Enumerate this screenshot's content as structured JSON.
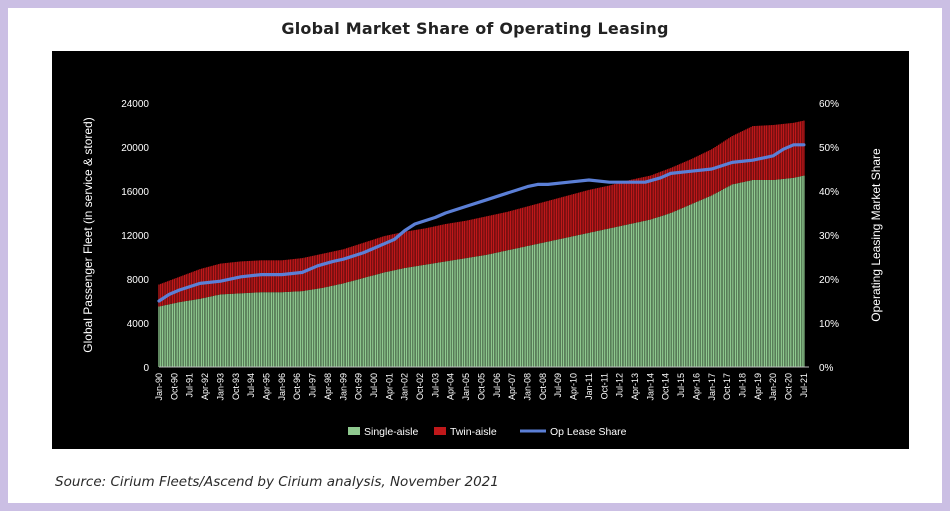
{
  "chart_data": {
    "type": "bar",
    "title": "Global Market Share of Operating Leasing",
    "ylabel": "Global Passenger Fleet (in service & stored)",
    "y2label": "Operating Leasing Market Share",
    "ylim": [
      0,
      24000
    ],
    "y2lim": [
      0,
      0.6
    ],
    "yticks": [
      "0",
      "4000",
      "8000",
      "12000",
      "16000",
      "20000",
      "24000"
    ],
    "y2ticks": [
      "0%",
      "10%",
      "20%",
      "30%",
      "40%",
      "50%",
      "60%"
    ],
    "x_ticks": [
      "Jan-90",
      "Oct-90",
      "Jul-91",
      "Apr-92",
      "Jan-93",
      "Oct-93",
      "Jul-94",
      "Apr-95",
      "Jan-96",
      "Oct-96",
      "Jul-97",
      "Apr-98",
      "Jan-99",
      "Oct-99",
      "Jul-00",
      "Apr-01",
      "Jan-02",
      "Oct-02",
      "Jul-03",
      "Apr-04",
      "Jan-05",
      "Oct-05",
      "Jul-06",
      "Apr-07",
      "Jan-08",
      "Oct-08",
      "Jul-09",
      "Apr-10",
      "Jan-11",
      "Oct-11",
      "Jul-12",
      "Apr-13",
      "Jan-14",
      "Oct-14",
      "Jul-15",
      "Apr-16",
      "Jan-17",
      "Oct-17",
      "Jul-18",
      "Apr-19",
      "Jan-20",
      "Oct-20",
      "Jul-21"
    ],
    "x_years": [
      1990.0,
      1990.75,
      1991.5,
      1992.25,
      1993.0,
      1993.75,
      1994.5,
      1995.25,
      1996.0,
      1996.75,
      1997.5,
      1998.25,
      1999.0,
      1999.75,
      2000.5,
      2001.25,
      2002.0,
      2002.75,
      2003.5,
      2004.25,
      2005.0,
      2005.75,
      2006.5,
      2007.25,
      2008.0,
      2008.75,
      2009.5,
      2010.25,
      2011.0,
      2011.75,
      2012.5,
      2013.25,
      2014.0,
      2014.75,
      2015.5,
      2016.25,
      2017.0,
      2017.75,
      2018.5,
      2019.25,
      2020.0,
      2020.75,
      2021.5
    ],
    "series": [
      {
        "name": "Single-aisle",
        "color": "#8fc98f",
        "stack": "fleet",
        "x": [
          1990.0,
          1991.0,
          1992.0,
          1993.0,
          1994.0,
          1995.0,
          1996.0,
          1997.0,
          1998.0,
          1999.0,
          2000.0,
          2001.0,
          2002.0,
          2003.0,
          2004.0,
          2005.0,
          2006.0,
          2007.0,
          2008.0,
          2009.0,
          2010.0,
          2011.0,
          2012.0,
          2013.0,
          2014.0,
          2015.0,
          2016.0,
          2017.0,
          2018.0,
          2019.0,
          2020.0,
          2021.0,
          2021.5
        ],
        "values": [
          5500,
          5900,
          6200,
          6600,
          6700,
          6800,
          6800,
          6900,
          7200,
          7600,
          8100,
          8600,
          9000,
          9300,
          9600,
          9900,
          10200,
          10600,
          11000,
          11400,
          11800,
          12200,
          12600,
          13000,
          13400,
          14000,
          14800,
          15600,
          16600,
          17000,
          17000,
          17200,
          17400
        ]
      },
      {
        "name": "Twin-aisle",
        "color": "#c0181a",
        "stack": "fleet",
        "x": [
          1990.0,
          1991.0,
          1992.0,
          1993.0,
          1994.0,
          1995.0,
          1996.0,
          1997.0,
          1998.0,
          1999.0,
          2000.0,
          2001.0,
          2002.0,
          2003.0,
          2004.0,
          2005.0,
          2006.0,
          2007.0,
          2008.0,
          2009.0,
          2010.0,
          2011.0,
          2012.0,
          2013.0,
          2014.0,
          2015.0,
          2016.0,
          2017.0,
          2018.0,
          2019.0,
          2020.0,
          2021.0,
          2021.5
        ],
        "values": [
          2000,
          2300,
          2700,
          2800,
          2900,
          2900,
          2900,
          3000,
          3100,
          3100,
          3200,
          3300,
          3300,
          3300,
          3400,
          3400,
          3500,
          3500,
          3600,
          3700,
          3800,
          3900,
          3900,
          4000,
          4000,
          4100,
          4100,
          4200,
          4400,
          4900,
          5000,
          5000,
          5000
        ]
      },
      {
        "name": "Op Lease Share",
        "color": "#5b7fd6",
        "type": "line",
        "axis": "right",
        "x": [
          1990.0,
          1990.5,
          1991.0,
          1992.0,
          1993.0,
          1994.0,
          1995.0,
          1996.0,
          1997.0,
          1997.75,
          1998.5,
          1999.0,
          2000.0,
          2001.0,
          2001.5,
          2002.0,
          2002.5,
          2003.5,
          2004.0,
          2005.0,
          2006.0,
          2007.0,
          2008.0,
          2008.5,
          2009.0,
          2010.0,
          2011.0,
          2012.0,
          2013.0,
          2013.75,
          2014.5,
          2015.0,
          2016.0,
          2017.0,
          2018.0,
          2019.0,
          2020.0,
          2020.5,
          2021.0,
          2021.5
        ],
        "values": [
          0.15,
          0.165,
          0.175,
          0.19,
          0.195,
          0.205,
          0.21,
          0.21,
          0.215,
          0.23,
          0.24,
          0.245,
          0.26,
          0.28,
          0.29,
          0.31,
          0.325,
          0.34,
          0.35,
          0.365,
          0.38,
          0.395,
          0.41,
          0.415,
          0.415,
          0.42,
          0.425,
          0.42,
          0.42,
          0.42,
          0.43,
          0.44,
          0.445,
          0.45,
          0.465,
          0.47,
          0.48,
          0.495,
          0.505,
          0.505
        ]
      }
    ],
    "legend": [
      "Single-aisle",
      "Twin-aisle",
      "Op Lease Share"
    ],
    "legend_position": "bottom",
    "grid": false
  },
  "source": "Source: Cirium Fleets/Ascend by Cirium analysis, November 2021"
}
